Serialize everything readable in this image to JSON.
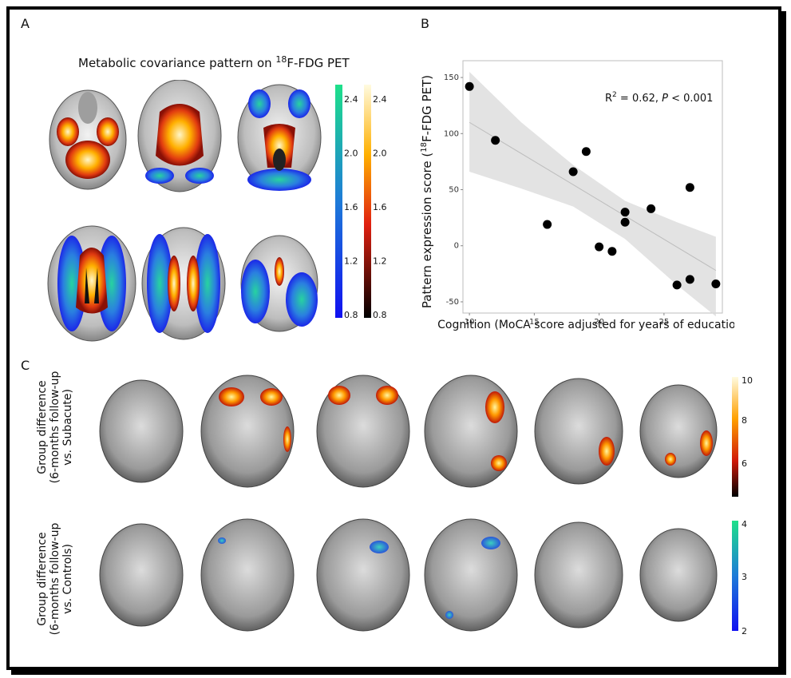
{
  "panels": {
    "a": {
      "label": "A",
      "title": "Metabolic covariance pattern on ",
      "title_sup": "18",
      "title_tail": "F-FDG PET",
      "scale_cool_ticks": [
        "2.4",
        "2.0",
        "1.6",
        "1.2",
        "0.8"
      ],
      "scale_warm_ticks": [
        "2.4",
        "2.0",
        "1.6",
        "1.2",
        "0.8"
      ],
      "colors": {
        "cool_top": "#1ee08a",
        "cool_mid": "#1e7bd8",
        "cool_bottom": "#1010f0",
        "warm_top": "#fffbe0",
        "warm_mid": "#f04010",
        "warm_bottom": "#000000"
      }
    },
    "b": {
      "label": "B"
    },
    "c": {
      "label": "C",
      "row1_label_line1": "Group difference",
      "row1_label_line2": "(6-months follow-up",
      "row1_label_line3": "vs. Subacute)",
      "row2_label_line1": "Group difference",
      "row2_label_line2": "(6-months follow-up",
      "row2_label_line3": "vs. Controls)",
      "scale_warm_ticks": [
        "10",
        "8",
        "6"
      ],
      "scale_cool_ticks": [
        "4",
        "3",
        "2"
      ]
    }
  },
  "chart_data": {
    "type": "scatter",
    "xlabel": "Cognition (MoCA score adjusted for years of education)",
    "ylabel_pre": "Pattern expression score (",
    "ylabel_sup": "18",
    "ylabel_post": "F-FDG PET)",
    "annotation_pre": "R",
    "annotation_sup": "2",
    "annotation_mid": " = 0.62, ",
    "annotation_p": "P",
    "annotation_post": " < 0.001",
    "xlim": [
      9.5,
      29.5
    ],
    "ylim": [
      -60,
      165
    ],
    "x_ticks": [
      10,
      15,
      20,
      25
    ],
    "y_ticks": [
      150,
      100,
      50,
      0,
      -50
    ],
    "points": [
      {
        "x": 10,
        "y": 142
      },
      {
        "x": 12,
        "y": 94
      },
      {
        "x": 16,
        "y": 19
      },
      {
        "x": 18,
        "y": 66
      },
      {
        "x": 19,
        "y": 84
      },
      {
        "x": 20,
        "y": -1
      },
      {
        "x": 21,
        "y": -5
      },
      {
        "x": 22,
        "y": 30
      },
      {
        "x": 22,
        "y": 21
      },
      {
        "x": 24,
        "y": 33
      },
      {
        "x": 26,
        "y": -35
      },
      {
        "x": 27,
        "y": 52
      },
      {
        "x": 27,
        "y": -30
      },
      {
        "x": 29,
        "y": -34
      }
    ],
    "fit_line": [
      {
        "x": 10,
        "y": 110
      },
      {
        "x": 29,
        "y": -22
      }
    ],
    "ci_band": [
      {
        "x": 10,
        "lo": 66,
        "hi": 155
      },
      {
        "x": 14,
        "lo": 51,
        "hi": 110
      },
      {
        "x": 18,
        "lo": 35,
        "hi": 72
      },
      {
        "x": 22,
        "lo": 6,
        "hi": 40
      },
      {
        "x": 26,
        "lo": -35,
        "hi": 21
      },
      {
        "x": 29,
        "lo": -63,
        "hi": 8
      }
    ],
    "grid": false,
    "colors": {
      "point": "#000000",
      "band": "#d9d9d9",
      "line": "#bdbdbd",
      "frame": "#bdbdbd"
    }
  }
}
